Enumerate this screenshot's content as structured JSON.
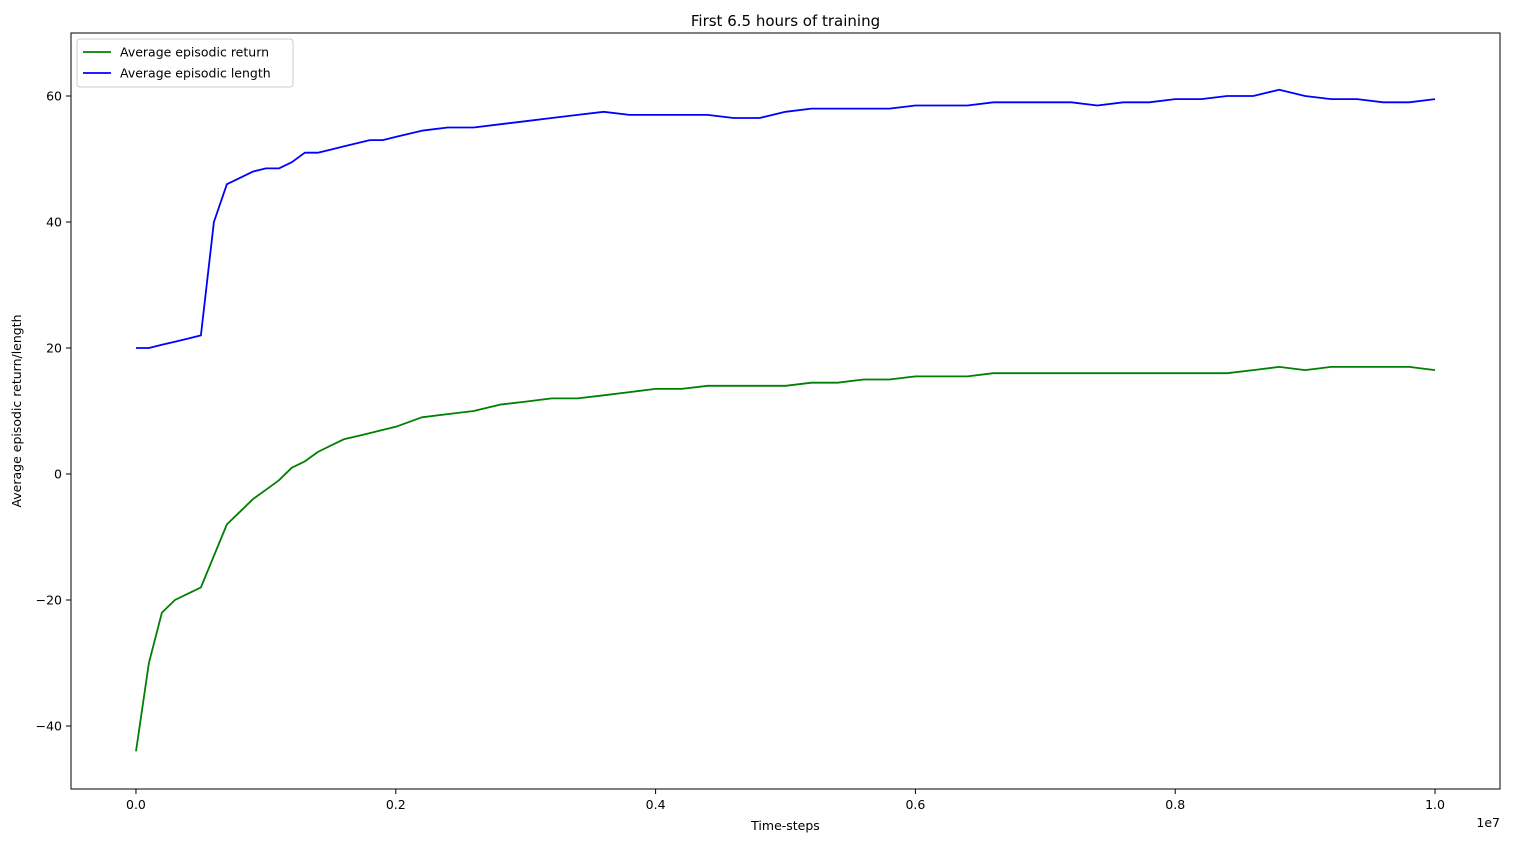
{
  "chart_data": {
    "type": "line",
    "title": "First 6.5 hours of training",
    "xlabel": "Time-steps",
    "ylabel": "Average episodic return/length",
    "x_offset_label": "1e7",
    "xlim": [
      -0.05,
      1.05
    ],
    "ylim": [
      -50,
      70
    ],
    "x_ticks": [
      0.0,
      0.2,
      0.4,
      0.6,
      0.8,
      1.0
    ],
    "x_tick_labels": [
      "0.0",
      "0.2",
      "0.4",
      "0.6",
      "0.8",
      "1.0"
    ],
    "y_ticks": [
      -40,
      -20,
      0,
      20,
      40,
      60
    ],
    "y_tick_labels": [
      "−40",
      "−20",
      "0",
      "20",
      "40",
      "60"
    ],
    "grid": false,
    "legend_position": "upper-left",
    "x": [
      0.0,
      0.01,
      0.02,
      0.03,
      0.04,
      0.05,
      0.06,
      0.07,
      0.08,
      0.09,
      0.1,
      0.11,
      0.12,
      0.13,
      0.14,
      0.15,
      0.16,
      0.17,
      0.18,
      0.19,
      0.2,
      0.22,
      0.24,
      0.26,
      0.28,
      0.3,
      0.32,
      0.34,
      0.36,
      0.38,
      0.4,
      0.42,
      0.44,
      0.46,
      0.48,
      0.5,
      0.52,
      0.54,
      0.56,
      0.58,
      0.6,
      0.62,
      0.64,
      0.66,
      0.68,
      0.7,
      0.72,
      0.74,
      0.76,
      0.78,
      0.8,
      0.82,
      0.84,
      0.86,
      0.88,
      0.9,
      0.92,
      0.94,
      0.96,
      0.98,
      1.0
    ],
    "series": [
      {
        "name": "Average episodic return",
        "color": "#008000",
        "values": [
          -44,
          -30,
          -22,
          -20,
          -19,
          -18,
          -13,
          -8,
          -6,
          -4,
          -2.5,
          -1,
          1,
          2,
          3.5,
          4.5,
          5.5,
          6,
          6.5,
          7,
          7.5,
          9,
          9.5,
          10,
          11,
          11.5,
          12,
          12,
          12.5,
          13,
          13.5,
          13.5,
          14,
          14,
          14,
          14,
          14.5,
          14.5,
          15,
          15,
          15.5,
          15.5,
          15.5,
          16,
          16,
          16,
          16,
          16,
          16,
          16,
          16,
          16,
          16,
          16.5,
          17,
          16.5,
          17,
          17,
          17,
          17,
          16.5
        ]
      },
      {
        "name": "Average episodic length",
        "color": "#0000ff",
        "values": [
          20,
          20,
          20.5,
          21,
          21.5,
          22,
          40,
          46,
          47,
          48,
          48.5,
          48.5,
          49.5,
          51,
          51,
          51.5,
          52,
          52.5,
          53,
          53,
          53.5,
          54.5,
          55,
          55,
          55.5,
          56,
          56.5,
          57,
          57.5,
          57,
          57,
          57,
          57,
          56.5,
          56.5,
          57.5,
          58,
          58,
          58,
          58,
          58.5,
          58.5,
          58.5,
          59,
          59,
          59,
          59,
          58.5,
          59,
          59,
          59.5,
          59.5,
          60,
          60,
          61,
          60,
          59.5,
          59.5,
          59,
          59,
          59.5
        ]
      }
    ]
  }
}
